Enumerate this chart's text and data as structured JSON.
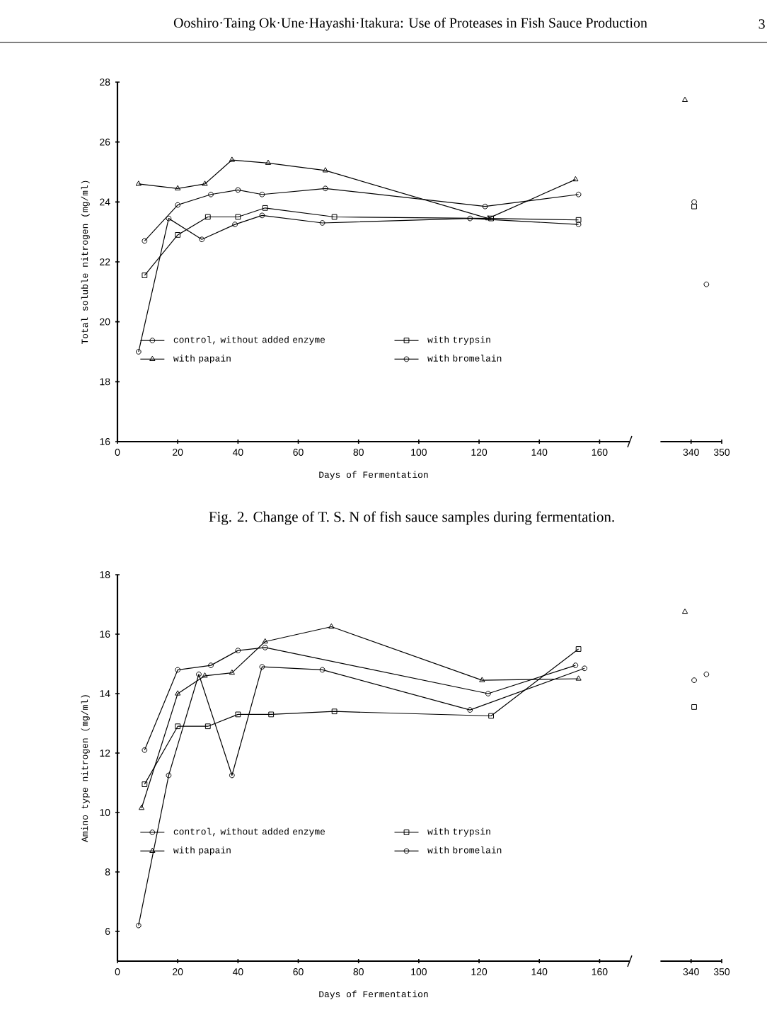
{
  "chart_data": [
    {
      "type": "line",
      "xlabel": "Days of Fermentation",
      "ylabel": "Total soluble nitrogen (mg/ml)",
      "xlim": [
        0,
        170
      ],
      "xticks": [
        0,
        20,
        40,
        60,
        80,
        100,
        120,
        140,
        160
      ],
      "ylim": [
        16,
        28
      ],
      "yticks": [
        16,
        18,
        20,
        22,
        24,
        26,
        28
      ],
      "legend": "bottom",
      "grid": false,
      "line_style": "solid",
      "annotations": [
        "Ooshiro·Taing Ok·Une·Hayashi·Itakura:  Use of Proteases in Fish Sauce Production",
        "3",
        "Fig. 2.   Change of T. S. N of fish sauce samples during fermentation."
      ],
      "series": [
        {
          "name": "control, without added enzyme",
          "color": "#000000",
          "marker": "circle",
          "x": [
            7,
            17,
            28,
            39,
            48,
            68,
            117,
            153
          ],
          "values": [
            19.0,
            23.45,
            22.75,
            23.25,
            23.55,
            23.3,
            23.45,
            23.25
          ]
        },
        {
          "name": "with trypsin",
          "color": "#000000",
          "marker": "square",
          "x": [
            9,
            20,
            30,
            40,
            49,
            72,
            124,
            153
          ],
          "values": [
            21.55,
            22.9,
            23.5,
            23.5,
            23.8,
            23.5,
            23.45,
            23.4
          ]
        },
        {
          "name": "with papain",
          "color": "#000000",
          "marker": "triangle",
          "x": [
            7,
            20,
            29,
            38,
            50,
            69,
            123,
            152
          ],
          "values": [
            24.6,
            24.45,
            24.6,
            25.4,
            25.3,
            25.05,
            23.45,
            24.75
          ]
        },
        {
          "name": "with bromelain",
          "color": "#000000",
          "marker": "circle",
          "x": [
            9,
            20,
            31,
            40,
            48,
            69,
            122,
            153
          ],
          "values": [
            22.7,
            23.9,
            24.25,
            24.4,
            24.25,
            24.45,
            23.85,
            24.25
          ]
        }
      ]
    },
    {
      "type": "line",
      "xlim": [
        330,
        350
      ],
      "xticks": [
        340,
        350
      ],
      "ylim": [
        16,
        28
      ],
      "tick_labels": "x",
      "grid": false,
      "line_style": "solid",
      "series": [
        {
          "color": "#000000",
          "marker": "circle",
          "x": [
            345
          ],
          "values": [
            21.25
          ]
        },
        {
          "color": "#000000",
          "marker": "square",
          "x": [
            341
          ],
          "values": [
            23.85
          ]
        },
        {
          "color": "#000000",
          "marker": "triangle",
          "x": [
            338
          ],
          "values": [
            27.4
          ]
        },
        {
          "color": "#000000",
          "marker": "circle",
          "x": [
            341
          ],
          "values": [
            24.0
          ]
        }
      ]
    },
    {
      "type": "line",
      "xlabel": "Days of Fermentation",
      "ylabel": "Amino type nitrogen (mg/ml)",
      "xlim": [
        0,
        170
      ],
      "xticks": [
        0,
        20,
        40,
        60,
        80,
        100,
        120,
        140,
        160
      ],
      "ylim": [
        5,
        18
      ],
      "yticks": [
        6,
        8,
        10,
        12,
        14,
        16,
        18
      ],
      "legend": "bottom",
      "line_style": "solid",
      "series": [
        {
          "name": "control, without added enzyme",
          "color": "#000000",
          "marker": "circle",
          "x": [
            7,
            17,
            27,
            38,
            48,
            68,
            117,
            155
          ],
          "values": [
            6.2,
            11.25,
            14.65,
            11.25,
            14.9,
            14.8,
            13.45,
            14.85
          ]
        },
        {
          "name": "with trypsin",
          "color": "#000000",
          "marker": "square",
          "x": [
            9,
            20,
            30,
            40,
            51,
            72,
            124,
            153
          ],
          "values": [
            10.95,
            12.9,
            12.9,
            13.3,
            13.3,
            13.4,
            13.25,
            15.5
          ]
        },
        {
          "name": "with papain",
          "color": "#000000",
          "marker": "triangle",
          "x": [
            8,
            20,
            29,
            38,
            49,
            71,
            121,
            153
          ],
          "values": [
            10.15,
            14.0,
            14.6,
            14.7,
            15.75,
            16.25,
            14.45,
            14.5
          ]
        },
        {
          "name": "with bromelain",
          "color": "#000000",
          "marker": "circle",
          "x": [
            9,
            20,
            31,
            40,
            49,
            123,
            152
          ],
          "values": [
            12.1,
            14.8,
            14.95,
            15.45,
            15.55,
            14.0,
            14.95
          ]
        }
      ]
    },
    {
      "type": "line",
      "xlim": [
        330,
        350
      ],
      "xticks": [
        340,
        350
      ],
      "ylim": [
        5,
        18
      ],
      "tick_labels": "x",
      "line_style": "solid",
      "series": [
        {
          "color": "#000000",
          "marker": "circle",
          "x": [
            345
          ],
          "values": [
            14.65
          ]
        },
        {
          "color": "#000000",
          "marker": "square",
          "x": [
            341
          ],
          "values": [
            13.55
          ]
        },
        {
          "color": "#000000",
          "marker": "triangle",
          "x": [
            338
          ],
          "values": [
            16.75
          ]
        },
        {
          "color": "#000000",
          "marker": "circle",
          "x": [
            341
          ],
          "values": [
            14.45
          ]
        }
      ]
    }
  ]
}
